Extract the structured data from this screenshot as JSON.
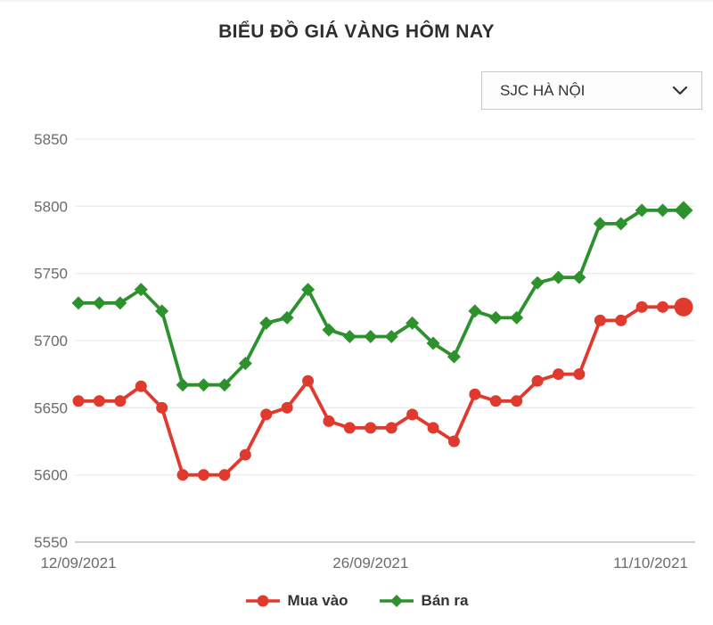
{
  "header": {
    "title": "BIỂU ĐỒ GIÁ VÀNG HÔM NAY"
  },
  "controls": {
    "region_select": {
      "value": "SJC HÀ NỘI",
      "chevron_icon": "chevron-down"
    }
  },
  "chart_data": {
    "type": "line",
    "title": "BIỂU ĐỒ GIÁ VÀNG HÔM NAY",
    "xlabel": "",
    "ylabel": "",
    "ylim": [
      5550,
      5850
    ],
    "y_ticks": [
      5550,
      5600,
      5650,
      5700,
      5750,
      5800,
      5850
    ],
    "x_ticks": [
      {
        "index": 0,
        "label": "12/09/2021"
      },
      {
        "index": 14,
        "label": "26/09/2021"
      },
      {
        "index": 29,
        "label": "11/10/2021"
      }
    ],
    "grid": true,
    "legend_position": "bottom",
    "colors": {
      "grid": "#ececec",
      "axis": "#cfcfcf",
      "tick_text": "#6b6b6b"
    },
    "series": [
      {
        "name": "Mua vào",
        "color": "#e03a2e",
        "marker": "circle",
        "values": [
          5655,
          5655,
          5655,
          5666,
          5650,
          5600,
          5600,
          5600,
          5615,
          5645,
          5650,
          5670,
          5640,
          5635,
          5635,
          5635,
          5645,
          5635,
          5625,
          5660,
          5655,
          5655,
          5670,
          5675,
          5675,
          5715,
          5715,
          5725,
          5725,
          5725
        ]
      },
      {
        "name": "Bán ra",
        "color": "#2d912d",
        "marker": "diamond",
        "values": [
          5728,
          5728,
          5728,
          5738,
          5722,
          5667,
          5667,
          5667,
          5683,
          5713,
          5717,
          5738,
          5708,
          5703,
          5703,
          5703,
          5713,
          5698,
          5688,
          5722,
          5717,
          5717,
          5743,
          5747,
          5747,
          5787,
          5787,
          5797,
          5797,
          5797
        ]
      }
    ]
  }
}
